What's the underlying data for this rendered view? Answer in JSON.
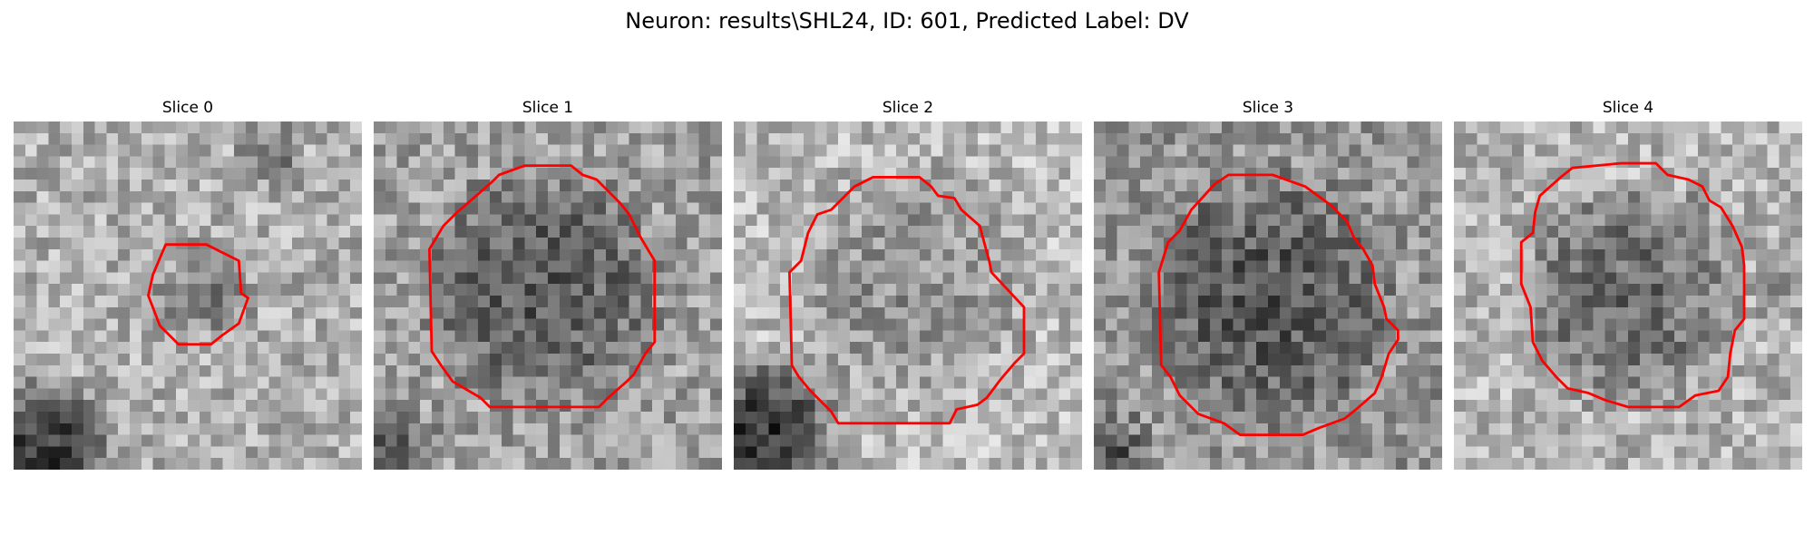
{
  "figure": {
    "title": "Neuron: results\\SHL24, ID: 601, Predicted Label: DV"
  },
  "contour_color": "#ff0000",
  "image_colormap": "grayscale",
  "panels": [
    {
      "title": "Slice 0"
    },
    {
      "title": "Slice 1"
    },
    {
      "title": "Slice 2"
    },
    {
      "title": "Slice 3"
    },
    {
      "title": "Slice 4"
    }
  ]
}
